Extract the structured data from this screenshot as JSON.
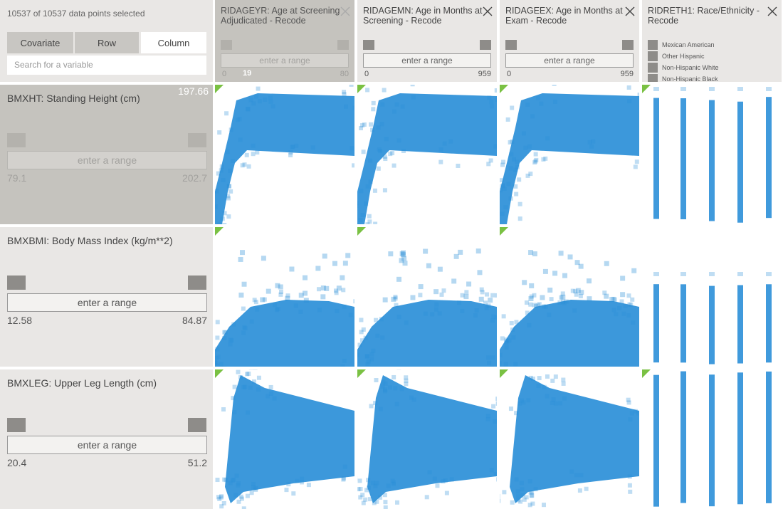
{
  "status": "10537 of 10537 data points selected",
  "tabs": [
    "Covariate",
    "Row",
    "Column"
  ],
  "search_placeholder": "Search for a variable",
  "columns": [
    {
      "title": "RIDAGEYR: Age at Screening Adjudicated - Recode",
      "range_placeholder": "enter a range",
      "min": 0,
      "current": 19,
      "max": 80
    },
    {
      "title": "RIDAGEMN: Age in Months at Screening - Recode",
      "range_placeholder": "enter a range",
      "min": 0,
      "max": 959
    },
    {
      "title": "RIDAGEEX: Age in Months at Exam - Recode",
      "range_placeholder": "enter a range",
      "min": 0,
      "max": 959
    },
    {
      "title": "RIDRETH1: Race/Ethnicity - Recode",
      "legend": [
        "Mexican American",
        "Other Hispanic",
        "Non-Hispanic White",
        "Non-Hispanic Black"
      ]
    }
  ],
  "rows": [
    {
      "title": "BMXHT: Standing Height (cm)",
      "selected_value": 197.66,
      "range_placeholder": "enter a range",
      "min": 79.1,
      "max": 202.7
    },
    {
      "title": "BMXBMI: Body Mass Index (kg/m**2)",
      "range_placeholder": "enter a range",
      "min": 12.58,
      "max": 84.87
    },
    {
      "title": "BMXLEG: Upper Leg Length (cm)",
      "range_placeholder": "enter a range",
      "min": 20.4,
      "max": 51.2
    }
  ]
}
